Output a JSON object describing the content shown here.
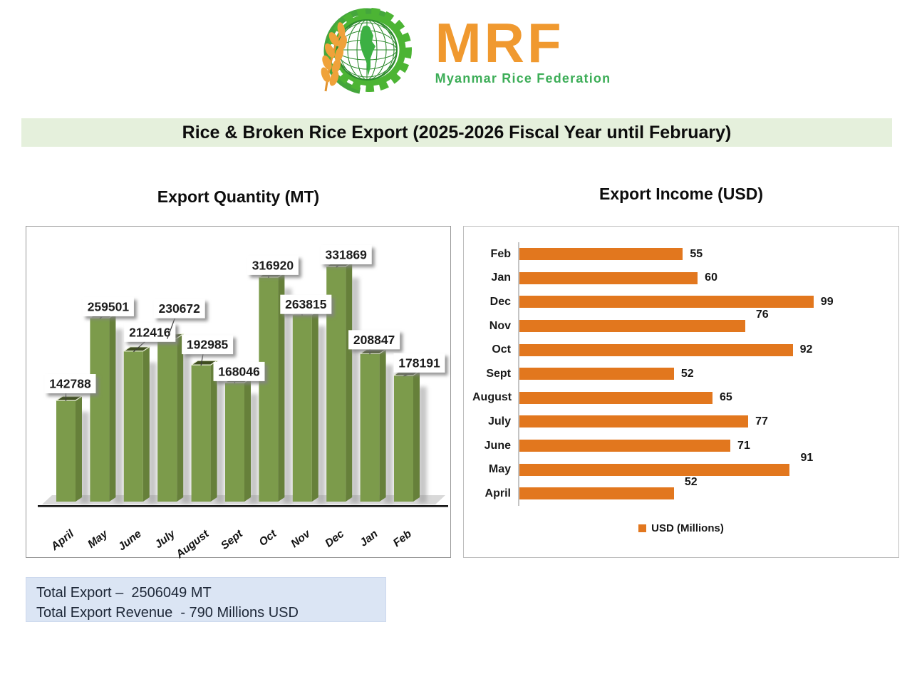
{
  "logo": {
    "acronym": "MRF",
    "subtitle": "Myanmar Rice Federation",
    "accent_orange": "#F0992F",
    "accent_green": "#3CAD57"
  },
  "banner": {
    "title": "Rice & Broken Rice Export (2025-2026 Fiscal Year until February)",
    "background": "#E5F0DC"
  },
  "totals": {
    "line1": "Total Export –  2506049 MT",
    "line2": "Total Export Revenue  - 790 Millions USD"
  },
  "chart_data": [
    {
      "type": "bar",
      "orientation": "vertical-3d",
      "title": "Export Quantity (MT)",
      "categories": [
        "April",
        "May",
        "June",
        "July",
        "August",
        "Sept",
        "Oct",
        "Nov",
        "Dec",
        "Jan",
        "Feb"
      ],
      "values": [
        142788,
        259501,
        212416,
        230672,
        192985,
        168046,
        316920,
        263815,
        331869,
        208847,
        178191
      ],
      "ylim": [
        0,
        331869
      ],
      "grid": false,
      "data_labels": true,
      "bar_front_color": "#7C9B4B",
      "bar_side_color": "#66803A",
      "bar_top_color": "#3F4E1F",
      "floor_color": "#D9D9D9",
      "label_layout": {
        "dx": [
          6,
          12,
          23,
          17,
          9,
          6,
          6,
          5,
          14,
          6,
          22
        ],
        "dy": [
          10,
          2,
          13,
          28,
          15,
          2,
          3,
          1,
          3,
          6,
          4
        ]
      }
    },
    {
      "type": "bar",
      "orientation": "horizontal",
      "title": "Export Income (USD)",
      "categories": [
        "Feb",
        "Jan",
        "Dec",
        "Nov",
        "Oct",
        "Sept",
        "August",
        "July",
        "June",
        "May",
        "April"
      ],
      "values": [
        55,
        60,
        99,
        76,
        92,
        52,
        65,
        77,
        71,
        91,
        52
      ],
      "xlim": [
        0,
        99
      ],
      "grid": false,
      "data_labels": true,
      "bar_color": "#E2771E",
      "raised_labels": [
        "Nov",
        "May",
        "April"
      ],
      "legend": "USD (Millions)",
      "legend_position": "bottom-center"
    }
  ]
}
